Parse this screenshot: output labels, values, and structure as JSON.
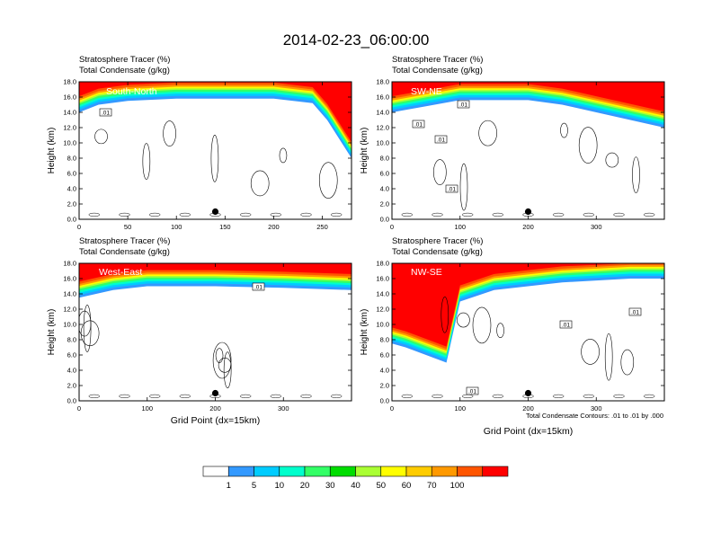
{
  "figure": {
    "title": "2014-02-23_06:00:00",
    "contour_note": "Total Condensate Contours: .01 to .01 by .000"
  },
  "colorbar": {
    "labels": [
      "1",
      "5",
      "10",
      "20",
      "30",
      "40",
      "50",
      "60",
      "70",
      "100"
    ],
    "colors": [
      "#ffffff",
      "#3399ff",
      "#00ccff",
      "#00ffcc",
      "#33ff66",
      "#00dd00",
      "#aaff33",
      "#ffff00",
      "#ffcc00",
      "#ff9900",
      "#ff5500",
      "#ff0000"
    ]
  },
  "chart_data": [
    {
      "type": "heatmap",
      "panel": "South-North",
      "subtitle_left": "Stratosphere Tracer",
      "subtitle_left_units": "(%)",
      "subtitle_left2": "Total Condensate",
      "subtitle_left2_units": "(g/kg)",
      "xlabel": "",
      "ylabel": "Height (km)",
      "xlim": [
        0,
        280
      ],
      "ylim": [
        0,
        18
      ],
      "xticks": [
        0,
        50,
        100,
        150,
        200,
        250
      ],
      "yticks": [
        "0.0",
        "2.0",
        "4.0",
        "6.0",
        "8.0",
        "10.0",
        "12.0",
        "14.0",
        "16.0",
        "18.0"
      ],
      "contour_labels": [
        ".01"
      ],
      "marker_x": 140,
      "marker_y": 1.0,
      "tropopause": [
        [
          0,
          14
        ],
        [
          20,
          15
        ],
        [
          50,
          15.5
        ],
        [
          100,
          15.8
        ],
        [
          200,
          15.8
        ],
        [
          240,
          15.2
        ],
        [
          255,
          13
        ],
        [
          265,
          11
        ],
        [
          275,
          9
        ],
        [
          280,
          8
        ]
      ]
    },
    {
      "type": "heatmap",
      "panel": "SW-NE",
      "subtitle_left": "Stratosphere Tracer",
      "subtitle_left_units": "(%)",
      "subtitle_left2": "Total Condensate",
      "subtitle_left2_units": "(g/kg)",
      "xlabel": "",
      "ylabel": "Height (km)",
      "xlim": [
        0,
        400
      ],
      "ylim": [
        0,
        18
      ],
      "xticks": [
        0,
        100,
        200,
        300
      ],
      "yticks": [
        "0.0",
        "2.0",
        "4.0",
        "6.0",
        "8.0",
        "10.0",
        "12.0",
        "14.0",
        "16.0",
        "18.0"
      ],
      "contour_labels": [
        ".01",
        ".01",
        ".01",
        ".01"
      ],
      "marker_x": 200,
      "marker_y": 1.0,
      "tropopause": [
        [
          0,
          14
        ],
        [
          50,
          14.8
        ],
        [
          100,
          15.6
        ],
        [
          200,
          15.6
        ],
        [
          250,
          15
        ],
        [
          300,
          14
        ],
        [
          350,
          13
        ],
        [
          400,
          12
        ]
      ]
    },
    {
      "type": "heatmap",
      "panel": "West-East",
      "subtitle_left": "Stratosphere Tracer",
      "subtitle_left_units": "(%)",
      "subtitle_left2": "Total Condensate",
      "subtitle_left2_units": "(g/kg)",
      "xlabel": "Grid Point (dx=15km)",
      "ylabel": "Height (km)",
      "xlim": [
        0,
        400
      ],
      "ylim": [
        0,
        18
      ],
      "xticks": [
        0,
        100,
        200,
        300
      ],
      "yticks": [
        "0.0",
        "2.0",
        "4.0",
        "6.0",
        "8.0",
        "10.0",
        "12.0",
        "14.0",
        "16.0",
        "18.0"
      ],
      "contour_labels": [
        ".01"
      ],
      "marker_x": 200,
      "marker_y": 1.0,
      "tropopause": [
        [
          0,
          13.5
        ],
        [
          50,
          14.5
        ],
        [
          100,
          15
        ],
        [
          200,
          15
        ],
        [
          300,
          14.8
        ],
        [
          400,
          14.5
        ]
      ]
    },
    {
      "type": "heatmap",
      "panel": "NW-SE",
      "subtitle_left": "Stratosphere Tracer",
      "subtitle_left_units": "(%)",
      "subtitle_left2": "Total Condensate",
      "subtitle_left2_units": "(g/kg)",
      "xlabel": "Grid Point (dx=15km)",
      "ylabel": "Height (km)",
      "xlim": [
        0,
        400
      ],
      "ylim": [
        0,
        18
      ],
      "xticks": [
        0,
        100,
        200,
        300
      ],
      "yticks": [
        "0.0",
        "2.0",
        "4.0",
        "6.0",
        "8.0",
        "10.0",
        "12.0",
        "14.0",
        "16.0",
        "18.0"
      ],
      "contour_labels": [
        ".01",
        ".01",
        ".01"
      ],
      "marker_x": 200,
      "marker_y": 1.0,
      "tropopause": [
        [
          0,
          7.5
        ],
        [
          20,
          7
        ],
        [
          50,
          6
        ],
        [
          80,
          5
        ],
        [
          100,
          13
        ],
        [
          150,
          14.5
        ],
        [
          250,
          15.5
        ],
        [
          350,
          16
        ],
        [
          400,
          16
        ]
      ]
    }
  ]
}
